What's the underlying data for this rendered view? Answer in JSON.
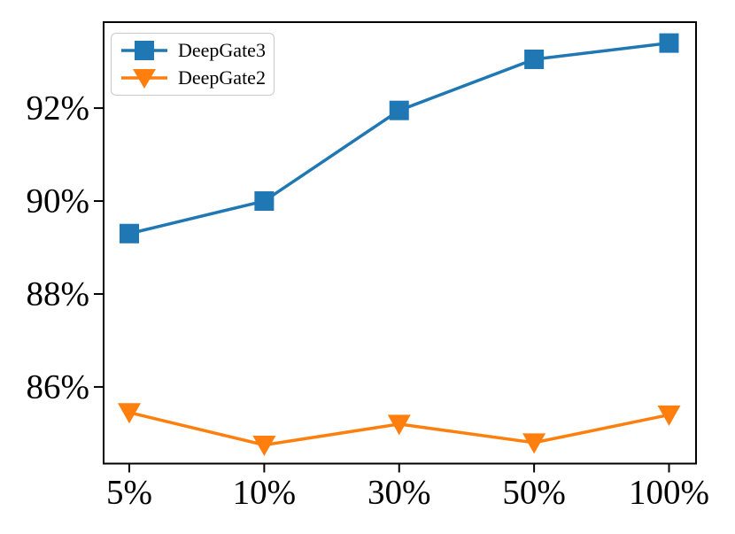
{
  "chart_data": {
    "type": "line",
    "title": "",
    "xlabel": "",
    "ylabel": "",
    "categories": [
      "5%",
      "10%",
      "30%",
      "50%",
      "100%"
    ],
    "series": [
      {
        "name": "DeepGate3",
        "marker": "square",
        "color": "#1f77b4",
        "values": [
          89.3,
          90.0,
          91.95,
          93.05,
          93.4
        ]
      },
      {
        "name": "DeepGate2",
        "marker": "triangle-down",
        "color": "#ff7f0e",
        "values": [
          85.45,
          84.75,
          85.2,
          84.8,
          85.4
        ]
      }
    ],
    "yticks": [
      86,
      88,
      90,
      92
    ],
    "ytick_labels": [
      "86%",
      "88%",
      "90%",
      "92%"
    ],
    "ylim": [
      84.35,
      93.85
    ],
    "grid": false,
    "legend_position": "upper-left",
    "axis_color": "#000000",
    "background": "#ffffff"
  }
}
